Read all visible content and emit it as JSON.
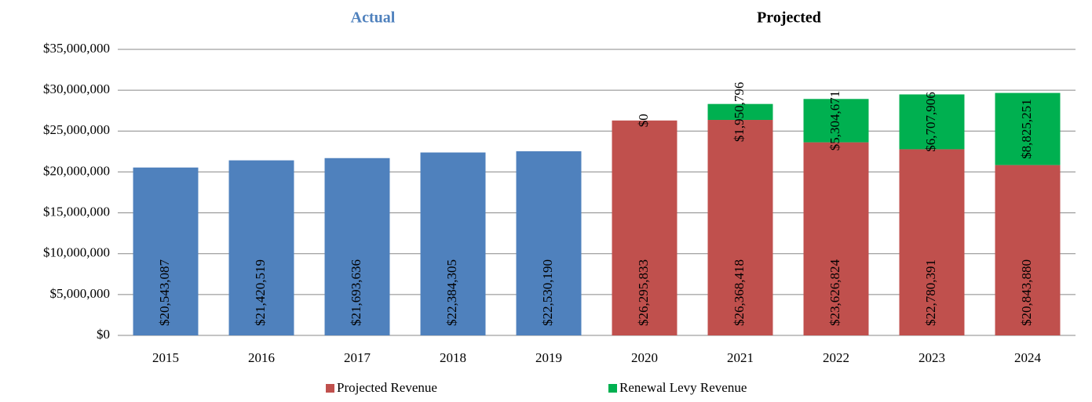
{
  "chart_data": {
    "type": "stacked_bar",
    "headers": [
      {
        "text": "Actual",
        "color": "#4f81bd"
      },
      {
        "text": "Projected",
        "color": "#000000"
      }
    ],
    "categories": [
      "2015",
      "2016",
      "2017",
      "2018",
      "2019",
      "2020",
      "2021",
      "2022",
      "2023",
      "2024"
    ],
    "series": [
      {
        "color": "#4f81bd",
        "values": [
          20543087,
          21420519,
          21693636,
          22384305,
          22530190,
          null,
          null,
          null,
          null,
          null
        ],
        "value_labels": [
          "$20,543,087",
          "$21,420,519",
          "$21,693,636",
          "$22,384,305",
          "$22,530,190",
          null,
          null,
          null,
          null,
          null
        ]
      },
      {
        "name": "Projected Revenue",
        "color": "#c0504d",
        "values": [
          null,
          null,
          null,
          null,
          null,
          26295833,
          26368418,
          23626824,
          22780391,
          20843880
        ],
        "value_labels": [
          null,
          null,
          null,
          null,
          null,
          "$26,295,833",
          "$26,368,418",
          "$23,626,824",
          "$22,780,391",
          "$20,843,880"
        ]
      },
      {
        "name": "Renewal Levy Revenue",
        "color": "#00b050",
        "values": [
          null,
          null,
          null,
          null,
          null,
          0,
          1950796,
          5304671,
          6707906,
          8825251
        ],
        "value_labels": [
          null,
          null,
          null,
          null,
          null,
          "$0",
          "$1,950,796",
          "$5,304,671",
          "$6,707,906",
          "$8,825,251"
        ]
      }
    ],
    "ylim": [
      0,
      35000000
    ],
    "yticks": [
      {
        "value": 0,
        "label": "$0"
      },
      {
        "value": 5000000,
        "label": "$5,000,000"
      },
      {
        "value": 10000000,
        "label": "$10,000,000"
      },
      {
        "value": 15000000,
        "label": "$15,000,000"
      },
      {
        "value": 20000000,
        "label": "$20,000,000"
      },
      {
        "value": 25000000,
        "label": "$25,000,000"
      },
      {
        "value": 30000000,
        "label": "$30,000,000"
      },
      {
        "value": 35000000,
        "label": "$35,000,000"
      }
    ],
    "grid": true,
    "legend": "bottom"
  }
}
